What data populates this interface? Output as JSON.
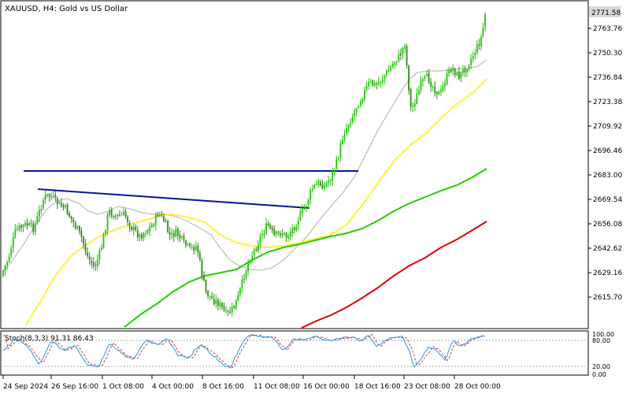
{
  "chart": {
    "symbol_label": "XAUUSD, H4:  Gold vs US Dollar",
    "price_levels": [
      "2763.76",
      "2750.30",
      "2736.84",
      "2723.38",
      "2709.92",
      "2696.46",
      "2683.00",
      "2669.54",
      "2656.08",
      "2642.62",
      "2629.16",
      "2615.70"
    ],
    "current_price": "2771.58",
    "date_labels": [
      "24 Sep 2024",
      "26 Sep 16:00",
      "1 Oct 08:00",
      "4 Oct 00:00",
      "8 Oct 16:00",
      "11 Oct 08:00",
      "16 Oct 00:00",
      "18 Oct 16:00",
      "23 Oct 08:00",
      "28 Oct 00:00"
    ],
    "colors": {
      "bull": "#22c40a",
      "bear": "#2f8a16",
      "ma20": "#c8c8c8",
      "ma50": "#ffee00",
      "ma100": "#22cc00",
      "ma200": "#dd0000",
      "trendline": "#0a1496",
      "price_label_bg": "#d9d9d9"
    }
  },
  "stoch": {
    "label": "Stoch(8,3,3) 91.31 86.43",
    "levels": [
      "100.00",
      "80.00",
      "20.00",
      "0.00"
    ],
    "colors": {
      "main": "#1a9ae0",
      "signal": "#e03030"
    }
  }
}
